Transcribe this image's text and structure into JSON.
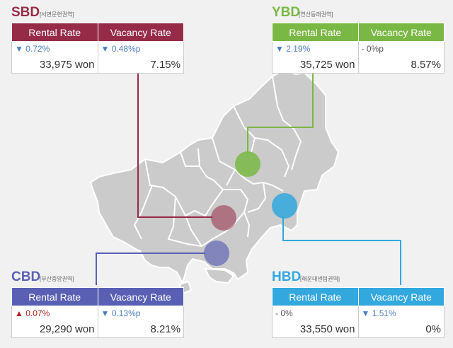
{
  "colors": {
    "sbd": "#962b48",
    "ybd": "#79b844",
    "cbd": "#5960b4",
    "hbd": "#33a8df",
    "map_fill": "#cbcbcb",
    "map_border": "#ffffff"
  },
  "headers": {
    "rent": "Rental Rate",
    "vacancy": "Vacancy Rate"
  },
  "districts": {
    "sbd": {
      "code": "SBD",
      "sub": "[서면문현권역]",
      "rent_change": "0.72%",
      "rent_dir": "down-arrow-icon",
      "vac_change": "0.48%p",
      "vac_dir": "down-arrow-icon",
      "rent_value": "33,975 won",
      "vac_value": "7.15%"
    },
    "ybd": {
      "code": "YBD",
      "sub": "[연산동래권역]",
      "rent_change": "2.19%",
      "rent_dir": "down-arrow-icon",
      "vac_change": "0%p",
      "vac_dir": "dash-icon",
      "rent_value": "35,725 won",
      "vac_value": "8.57%"
    },
    "cbd": {
      "code": "CBD",
      "sub": "[부산중앙권역]",
      "rent_change": "0.07%",
      "rent_dir": "up-arrow-icon",
      "vac_change": "0.13%p",
      "vac_dir": "down-arrow-icon",
      "rent_value": "29,290 won",
      "vac_value": "8.21%"
    },
    "hbd": {
      "code": "HBD",
      "sub": "[해운대센텀권역]",
      "rent_change": "0%",
      "rent_dir": "dash-icon",
      "vac_change": "1.51%",
      "vac_dir": "down-arrow-icon",
      "rent_value": "33,550 won",
      "vac_value": "0%"
    }
  },
  "glyphs": {
    "down": "▼",
    "up": "▲",
    "dash": "-"
  }
}
